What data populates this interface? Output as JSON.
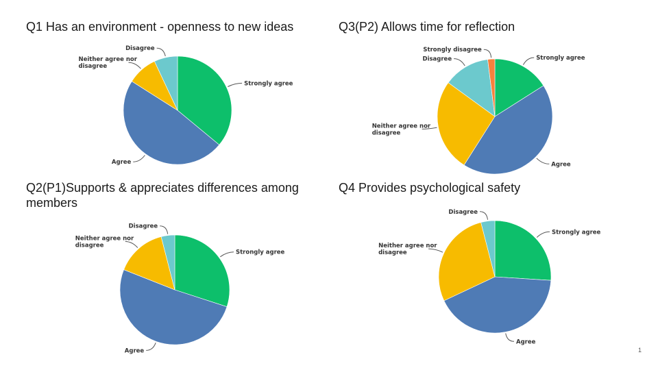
{
  "colors": {
    "Strongly agree": "#0dbf6b",
    "Agree": "#4f7bb5",
    "Neither agree nor disagree": "#f7bb00",
    "Disagree": "#6cc9cd",
    "Strongly disagree": "#f7813d"
  },
  "page_number": "1",
  "chart_data": [
    {
      "type": "pie",
      "title": "Q1 Has an environment - openness to new ideas",
      "categories": [
        "Strongly agree",
        "Agree",
        "Neither agree nor disagree",
        "Disagree"
      ],
      "values": [
        36,
        48,
        9,
        7
      ]
    },
    {
      "type": "pie",
      "title": "Q3(P2) Allows time for reflection",
      "categories": [
        "Strongly agree",
        "Agree",
        "Neither agree nor disagree",
        "Disagree",
        "Strongly disagree"
      ],
      "values": [
        16,
        43,
        26,
        13,
        2
      ]
    },
    {
      "type": "pie",
      "title": "Q2(P1)Supports & appreciates differences among members",
      "categories": [
        "Strongly agree",
        "Agree",
        "Neither agree nor disagree",
        "Disagree"
      ],
      "values": [
        30,
        51,
        15,
        4
      ]
    },
    {
      "type": "pie",
      "title": "Q4 Provides psychological safety",
      "categories": [
        "Strongly agree",
        "Agree",
        "Neither agree nor disagree",
        "Disagree"
      ],
      "values": [
        26,
        42,
        28,
        4
      ]
    }
  ]
}
